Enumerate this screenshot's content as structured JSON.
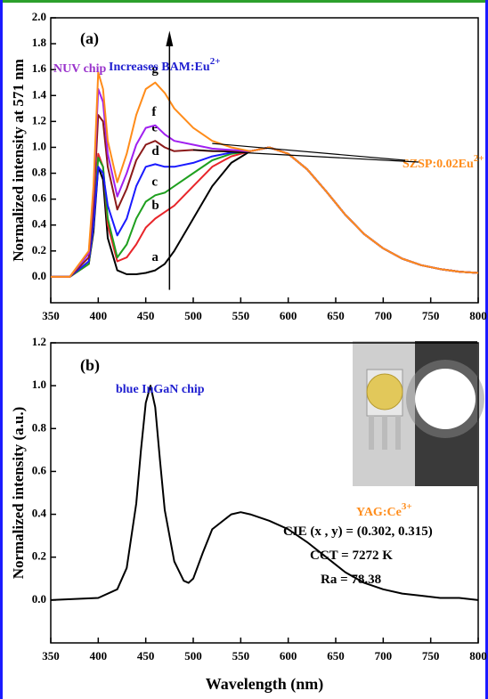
{
  "chart_data": [
    {
      "type": "line",
      "panel": "(a)",
      "y_label": "Normalized intensity at 571 nm",
      "x": [
        350,
        370,
        390,
        395,
        400,
        405,
        410,
        420,
        430,
        440,
        450,
        460,
        470,
        480,
        500,
        520,
        540,
        560,
        580,
        600,
        620,
        640,
        660,
        680,
        700,
        720,
        740,
        760,
        780,
        800
      ],
      "series": [
        {
          "name": "a",
          "color": "#000000",
          "values": [
            0,
            0,
            0.1,
            0.35,
            0.85,
            0.75,
            0.3,
            0.05,
            0.02,
            0.02,
            0.03,
            0.05,
            0.1,
            0.2,
            0.45,
            0.7,
            0.88,
            0.97,
            1.0,
            0.95,
            0.83,
            0.66,
            0.48,
            0.33,
            0.22,
            0.14,
            0.09,
            0.06,
            0.04,
            0.03
          ]
        },
        {
          "name": "b",
          "color": "#e8252a",
          "values": [
            0,
            0,
            0.1,
            0.4,
            0.95,
            0.85,
            0.4,
            0.12,
            0.15,
            0.25,
            0.38,
            0.45,
            0.5,
            0.55,
            0.7,
            0.85,
            0.93,
            0.97,
            1.0,
            0.95,
            0.83,
            0.66,
            0.48,
            0.33,
            0.22,
            0.14,
            0.09,
            0.06,
            0.04,
            0.03
          ]
        },
        {
          "name": "c",
          "color": "#1fa01f",
          "values": [
            0,
            0,
            0.1,
            0.4,
            0.92,
            0.85,
            0.45,
            0.15,
            0.25,
            0.45,
            0.58,
            0.63,
            0.65,
            0.7,
            0.8,
            0.9,
            0.95,
            0.97,
            1.0,
            0.95,
            0.83,
            0.66,
            0.48,
            0.33,
            0.22,
            0.14,
            0.09,
            0.06,
            0.04,
            0.03
          ]
        },
        {
          "name": "d",
          "color": "#1a1aff",
          "values": [
            0,
            0,
            0.12,
            0.4,
            0.85,
            0.8,
            0.55,
            0.32,
            0.45,
            0.7,
            0.85,
            0.87,
            0.85,
            0.85,
            0.88,
            0.93,
            0.96,
            0.97,
            1.0,
            0.95,
            0.83,
            0.66,
            0.48,
            0.33,
            0.22,
            0.14,
            0.09,
            0.06,
            0.04,
            0.03
          ]
        },
        {
          "name": "e",
          "color": "#8b1a1a",
          "values": [
            0,
            0,
            0.15,
            0.55,
            1.25,
            1.2,
            0.85,
            0.52,
            0.68,
            0.9,
            1.02,
            1.05,
            1.0,
            0.97,
            0.98,
            0.97,
            0.97,
            0.97,
            1.0,
            0.95,
            0.83,
            0.66,
            0.48,
            0.33,
            0.22,
            0.14,
            0.09,
            0.06,
            0.04,
            0.03
          ]
        },
        {
          "name": "f",
          "color": "#a020f0",
          "values": [
            0,
            0,
            0.18,
            0.65,
            1.45,
            1.35,
            0.95,
            0.62,
            0.8,
            1.02,
            1.15,
            1.17,
            1.1,
            1.05,
            1.02,
            0.99,
            0.98,
            0.97,
            1.0,
            0.95,
            0.83,
            0.66,
            0.48,
            0.33,
            0.22,
            0.14,
            0.09,
            0.06,
            0.04,
            0.03
          ]
        },
        {
          "name": "g",
          "color": "#ff8c1a",
          "values": [
            0,
            0,
            0.2,
            0.7,
            1.58,
            1.45,
            1.05,
            0.73,
            0.95,
            1.25,
            1.45,
            1.5,
            1.42,
            1.3,
            1.15,
            1.05,
            1.0,
            0.97,
            1.0,
            0.95,
            0.83,
            0.66,
            0.48,
            0.33,
            0.22,
            0.14,
            0.09,
            0.06,
            0.04,
            0.03
          ]
        }
      ],
      "xlim": [
        350,
        800
      ],
      "xticks": [
        350,
        400,
        450,
        500,
        550,
        600,
        650,
        700,
        750,
        800
      ],
      "ylim": [
        -0.2,
        2.0
      ],
      "yticks": [
        {
          "value": 0,
          "label": "0.0"
        },
        0.2,
        0.4,
        0.6,
        0.8,
        {
          "value": 1,
          "label": "1.0"
        },
        1.2,
        1.4,
        1.6,
        1.8,
        {
          "value": 2,
          "label": "2.0"
        }
      ],
      "annotations": [
        {
          "text": "NUV chip",
          "color": "#9932cc"
        },
        {
          "text": "Increases BAM:Eu",
          "sup": "2+",
          "color": "#2020d0"
        },
        {
          "text": "SZSP:0.02Eu",
          "sup": "2+",
          "color": "#ff8c1a"
        }
      ]
    },
    {
      "type": "line",
      "panel": "(b)",
      "y_label": "Normalized intensity (a.u.)",
      "x_label": "Wavelength (nm)",
      "x": [
        350,
        400,
        420,
        430,
        440,
        445,
        450,
        455,
        460,
        465,
        470,
        480,
        490,
        495,
        500,
        510,
        520,
        540,
        550,
        560,
        580,
        600,
        620,
        640,
        660,
        680,
        700,
        720,
        740,
        760,
        780,
        800
      ],
      "series": [
        {
          "color": "#000000",
          "values": [
            0,
            0.01,
            0.05,
            0.15,
            0.45,
            0.7,
            0.92,
            1.0,
            0.9,
            0.65,
            0.42,
            0.18,
            0.09,
            0.08,
            0.1,
            0.22,
            0.33,
            0.4,
            0.41,
            0.4,
            0.37,
            0.33,
            0.27,
            0.2,
            0.13,
            0.08,
            0.05,
            0.03,
            0.02,
            0.01,
            0.01,
            0
          ]
        }
      ],
      "xlim": [
        350,
        800
      ],
      "xticks": [
        350,
        400,
        450,
        500,
        550,
        600,
        650,
        700,
        750,
        800
      ],
      "ylim": [
        -0.2,
        1.2
      ],
      "yticks": [
        {
          "value": 0,
          "label": "0.0"
        },
        0.2,
        0.4,
        0.6,
        0.8,
        {
          "value": 1,
          "label": "1.0"
        },
        1.2
      ],
      "annotations": [
        {
          "text": "blue InGaN chip",
          "color": "#2020d0"
        },
        {
          "text": "YAG:Ce",
          "sup": "3+",
          "color": "#ff8c1a"
        },
        {
          "text": "CIE (x , y) = (0.302, 0.315)",
          "color": "#000000"
        },
        {
          "text": "CCT = 7272 K",
          "color": "#000000"
        },
        {
          "text": "Ra = 78.38",
          "color": "#000000"
        }
      ]
    }
  ]
}
